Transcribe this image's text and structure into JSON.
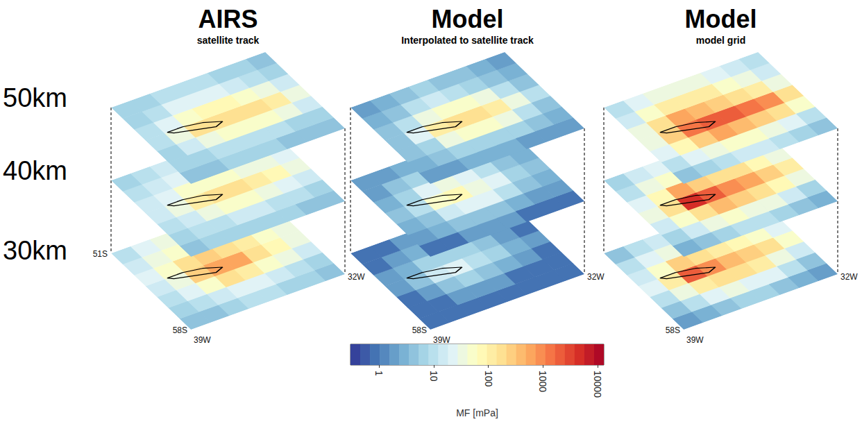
{
  "chart_data": {
    "type": "heatmap",
    "rows": [
      "50km",
      "40km",
      "30km"
    ],
    "xlim": [
      -39,
      -32
    ],
    "xticks": [
      {
        "value": -39,
        "label": "39W"
      },
      {
        "value": -32,
        "label": "32W"
      }
    ],
    "ylim": [
      -58,
      -51
    ],
    "yticks": [
      {
        "value": -58,
        "label": "58S"
      },
      {
        "value": -51,
        "label": "51S"
      }
    ],
    "x": [
      -38.5625,
      -37.6875,
      -36.8125,
      -35.9375,
      -35.0625,
      -34.1875,
      -33.3125,
      -32.4375
    ],
    "y": [
      -57.5,
      -56.5,
      -55.5,
      -54.5,
      -53.5,
      -52.5,
      -51.5
    ],
    "colorbar": {
      "label": "MF [mPa]",
      "range": [
        0.3,
        13000
      ],
      "ticks": [
        1,
        10,
        100,
        1000,
        10000
      ],
      "log": true
    },
    "coastline": {
      "lon": [
        -38.0,
        -37.3,
        -36.5,
        -35.8,
        -36.2,
        -37.0,
        -37.8,
        -38.0
      ],
      "lat": [
        -54.0,
        -54.0,
        -54.2,
        -54.6,
        -54.8,
        -54.5,
        -54.2,
        -54.0
      ],
      "color": "#000000"
    },
    "columns": [
      {
        "title": "AIRS",
        "subtitle": "satellite track",
        "panels": [
          [
            [
              4,
              5,
              6,
              6,
              6,
              5,
              5,
              4
            ],
            [
              6,
              8,
              10,
              12,
              12,
              10,
              8,
              6
            ],
            [
              8,
              15,
              40,
              60,
              60,
              50,
              30,
              15
            ],
            [
              10,
              30,
              150,
              200,
              200,
              180,
              100,
              40
            ],
            [
              10,
              20,
              60,
              80,
              70,
              50,
              30,
              15
            ],
            [
              8,
              12,
              20,
              25,
              20,
              15,
              12,
              8
            ],
            [
              6,
              8,
              10,
              12,
              10,
              8,
              6,
              5
            ]
          ],
          [
            [
              5,
              6,
              8,
              8,
              8,
              6,
              5,
              5
            ],
            [
              8,
              10,
              12,
              15,
              15,
              12,
              10,
              8
            ],
            [
              10,
              15,
              30,
              50,
              50,
              40,
              25,
              15
            ],
            [
              15,
              30,
              120,
              150,
              150,
              120,
              80,
              40
            ],
            [
              15,
              25,
              60,
              60,
              50,
              40,
              30,
              20
            ],
            [
              10,
              15,
              25,
              30,
              25,
              20,
              15,
              10
            ],
            [
              8,
              10,
              15,
              20,
              15,
              12,
              10,
              8
            ]
          ],
          [
            [
              5,
              5,
              8,
              10,
              10,
              8,
              8,
              5
            ],
            [
              8,
              10,
              15,
              20,
              20,
              15,
              10,
              8
            ],
            [
              10,
              20,
              60,
              150,
              120,
              60,
              30,
              15
            ],
            [
              15,
              40,
              300,
              700,
              500,
              200,
              80,
              30
            ],
            [
              20,
              50,
              150,
              300,
              200,
              100,
              60,
              30
            ],
            [
              15,
              40,
              60,
              80,
              70,
              60,
              40,
              20
            ],
            [
              10,
              20,
              30,
              40,
              40,
              30,
              20,
              10
            ]
          ]
        ]
      },
      {
        "title": "Model",
        "subtitle": "Interpolated to satellite track",
        "panels": [
          [
            [
              2,
              2,
              3,
              3,
              3,
              2,
              2,
              2
            ],
            [
              3,
              4,
              6,
              8,
              8,
              6,
              4,
              3
            ],
            [
              4,
              8,
              30,
              50,
              50,
              30,
              12,
              5
            ],
            [
              5,
              20,
              100,
              150,
              150,
              100,
              40,
              10
            ],
            [
              4,
              10,
              40,
              60,
              50,
              30,
              12,
              5
            ],
            [
              3,
              5,
              10,
              15,
              12,
              8,
              5,
              3
            ],
            [
              2,
              3,
              5,
              6,
              5,
              4,
              3,
              2
            ]
          ],
          [
            [
              1,
              1,
              2,
              2,
              2,
              1,
              1,
              1
            ],
            [
              2,
              3,
              4,
              5,
              4,
              3,
              2,
              2
            ],
            [
              3,
              5,
              15,
              25,
              20,
              10,
              5,
              3
            ],
            [
              4,
              10,
              50,
              70,
              40,
              20,
              8,
              4
            ],
            [
              3,
              6,
              20,
              30,
              20,
              10,
              5,
              3
            ],
            [
              2,
              4,
              6,
              8,
              6,
              4,
              3,
              2
            ],
            [
              2,
              2,
              3,
              4,
              3,
              2,
              2,
              1
            ]
          ],
          [
            [
              1,
              1,
              1,
              1,
              1,
              1,
              1,
              1
            ],
            [
              1,
              1,
              2,
              2,
              2,
              1,
              1,
              1
            ],
            [
              1,
              2,
              4,
              6,
              5,
              3,
              2,
              1
            ],
            [
              2,
              4,
              15,
              20,
              12,
              6,
              3,
              2
            ],
            [
              2,
              3,
              6,
              8,
              6,
              4,
              2,
              1
            ],
            [
              1,
              2,
              3,
              3,
              3,
              2,
              1,
              1
            ],
            [
              1,
              1,
              2,
              2,
              2,
              1,
              1,
              1
            ]
          ]
        ]
      },
      {
        "title": "Model",
        "subtitle": "model grid",
        "panels": [
          [
            [
              5,
              8,
              10,
              15,
              15,
              10,
              8,
              5
            ],
            [
              10,
              20,
              40,
              60,
              50,
              40,
              20,
              10
            ],
            [
              20,
              80,
              300,
              500,
              400,
              300,
              150,
              50
            ],
            [
              40,
              300,
              1500,
              2000,
              2000,
              1500,
              800,
              200
            ],
            [
              30,
              150,
              500,
              400,
              300,
              200,
              100,
              40
            ],
            [
              15,
              50,
              100,
              120,
              100,
              60,
              30,
              15
            ],
            [
              10,
              20,
              30,
              40,
              30,
              20,
              15,
              10
            ]
          ],
          [
            [
              3,
              5,
              8,
              10,
              10,
              8,
              5,
              3
            ],
            [
              8,
              15,
              30,
              50,
              40,
              30,
              15,
              8
            ],
            [
              15,
              50,
              200,
              400,
              300,
              200,
              80,
              30
            ],
            [
              30,
              200,
              5000,
              2000,
              800,
              600,
              300,
              100
            ],
            [
              20,
              80,
              500,
              300,
              200,
              150,
              80,
              30
            ],
            [
              10,
              30,
              60,
              80,
              60,
              40,
              25,
              10
            ],
            [
              8,
              15,
              20,
              30,
              20,
              15,
              10,
              8
            ]
          ],
          [
            [
              2,
              3,
              5,
              8,
              8,
              5,
              3,
              2
            ],
            [
              5,
              10,
              20,
              30,
              25,
              20,
              10,
              5
            ],
            [
              10,
              30,
              100,
              200,
              150,
              100,
              40,
              15
            ],
            [
              20,
              100,
              2000,
              800,
              400,
              300,
              150,
              50
            ],
            [
              15,
              50,
              300,
              150,
              100,
              80,
              50,
              20
            ],
            [
              10,
              20,
              40,
              50,
              40,
              30,
              20,
              10
            ],
            [
              5,
              10,
              15,
              20,
              15,
              10,
              8,
              5
            ]
          ]
        ]
      }
    ]
  }
}
